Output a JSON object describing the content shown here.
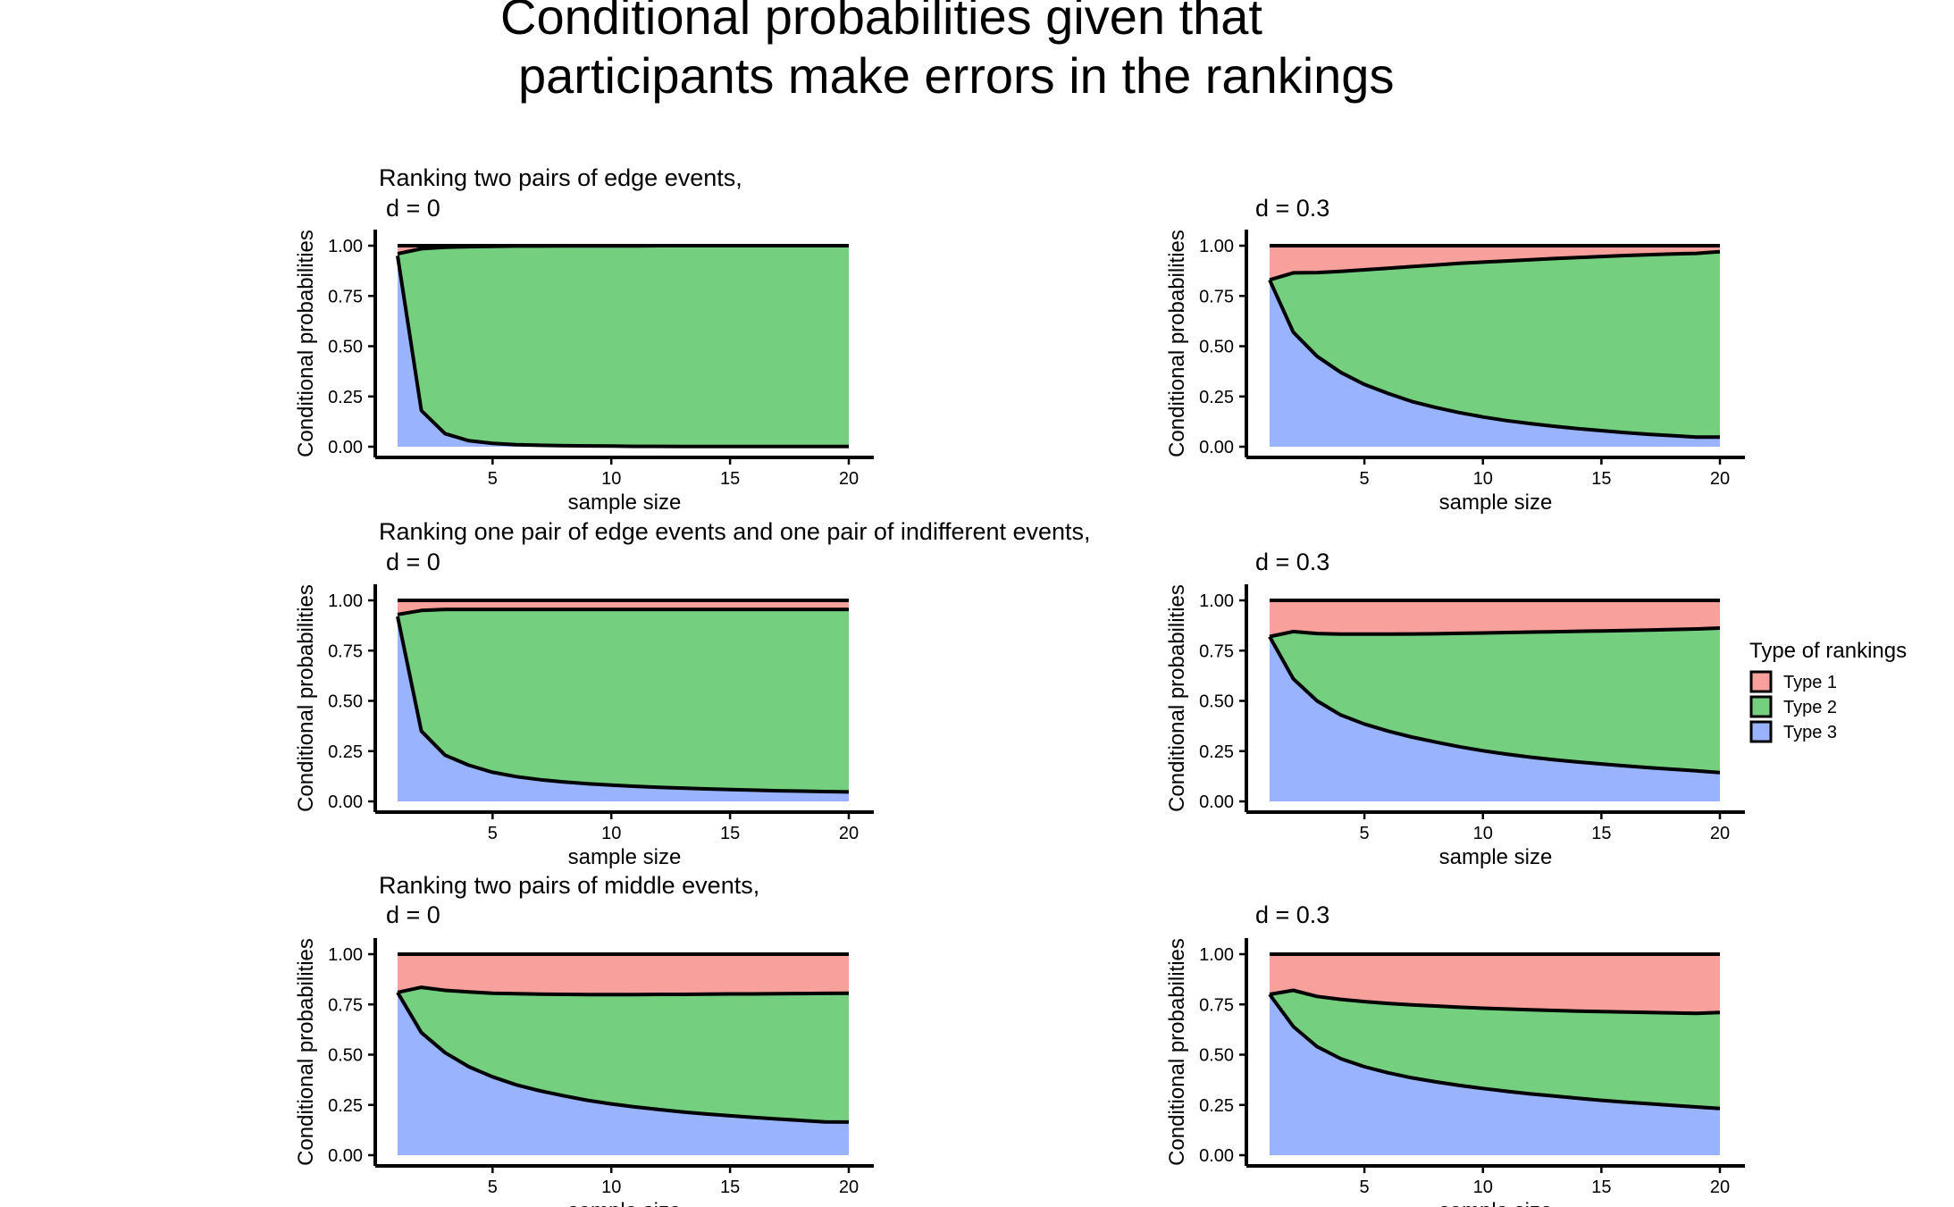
{
  "title_line1": "Conditional probabilities given that",
  "title_line2": "participants make errors in the rankings",
  "colors": {
    "type1": "#F8A09C",
    "type2": "#74D07F",
    "type3": "#99B3FF",
    "line": "#000000"
  },
  "legend": {
    "title": "Type of rankings",
    "items": [
      {
        "label": "Type 1",
        "color": "#F8A09C"
      },
      {
        "label": "Type 2",
        "color": "#74D07F"
      },
      {
        "label": "Type 3",
        "color": "#99B3FF"
      }
    ]
  },
  "chart_data": [
    {
      "type": "area",
      "title": "Ranking two pairs of edge events,",
      "subtitle": "d = 0",
      "xlabel": "sample size",
      "ylabel": "Conditional probabilities",
      "xlim": [
        1,
        20
      ],
      "ylim": [
        0,
        1
      ],
      "xticks": [
        5,
        10,
        15,
        20
      ],
      "yticks": [
        "0.00",
        "0.25",
        "0.50",
        "0.75",
        "1.00"
      ],
      "x": [
        1,
        2,
        3,
        4,
        5,
        6,
        7,
        8,
        9,
        10,
        11,
        12,
        13,
        14,
        15,
        16,
        17,
        18,
        19,
        20
      ],
      "type3_upper": [
        0.95,
        0.18,
        0.065,
        0.03,
        0.017,
        0.01,
        0.007,
        0.005,
        0.004,
        0.003,
        0.002,
        0.002,
        0.001,
        0.001,
        0.001,
        0.001,
        0.001,
        0.001,
        0.001,
        0.001
      ],
      "type2_upper": [
        0.96,
        0.985,
        0.992,
        0.995,
        0.997,
        0.998,
        0.998,
        0.999,
        0.999,
        0.999,
        0.999,
        1,
        1,
        1,
        1,
        1,
        1,
        1,
        1,
        1
      ]
    },
    {
      "type": "area",
      "title": "",
      "subtitle": "d = 0.3",
      "xlabel": "sample size",
      "ylabel": "Conditional probabilities",
      "xlim": [
        1,
        20
      ],
      "ylim": [
        0,
        1
      ],
      "xticks": [
        5,
        10,
        15,
        20
      ],
      "yticks": [
        "0.00",
        "0.25",
        "0.50",
        "0.75",
        "1.00"
      ],
      "x": [
        1,
        2,
        3,
        4,
        5,
        6,
        7,
        8,
        9,
        10,
        11,
        12,
        13,
        14,
        15,
        16,
        17,
        18,
        19,
        20
      ],
      "type3_upper": [
        0.83,
        0.57,
        0.45,
        0.37,
        0.31,
        0.265,
        0.225,
        0.195,
        0.17,
        0.148,
        0.13,
        0.115,
        0.102,
        0.09,
        0.08,
        0.07,
        0.062,
        0.055,
        0.048,
        0.048
      ],
      "type2_upper": [
        0.83,
        0.865,
        0.866,
        0.872,
        0.88,
        0.888,
        0.896,
        0.904,
        0.912,
        0.918,
        0.924,
        0.93,
        0.936,
        0.941,
        0.946,
        0.951,
        0.955,
        0.959,
        0.962,
        0.97
      ]
    },
    {
      "type": "area",
      "title": "Ranking one pair of edge events and one pair of indifferent events,",
      "subtitle": "d = 0",
      "xlabel": "sample size",
      "ylabel": "Conditional probabilities",
      "xlim": [
        1,
        20
      ],
      "ylim": [
        0,
        1
      ],
      "xticks": [
        5,
        10,
        15,
        20
      ],
      "yticks": [
        "0.00",
        "0.25",
        "0.50",
        "0.75",
        "1.00"
      ],
      "x": [
        1,
        2,
        3,
        4,
        5,
        6,
        7,
        8,
        9,
        10,
        11,
        12,
        13,
        14,
        15,
        16,
        17,
        18,
        19,
        20
      ],
      "type3_upper": [
        0.92,
        0.35,
        0.23,
        0.18,
        0.145,
        0.123,
        0.108,
        0.097,
        0.088,
        0.081,
        0.075,
        0.07,
        0.066,
        0.062,
        0.059,
        0.056,
        0.053,
        0.051,
        0.049,
        0.047
      ],
      "type2_upper": [
        0.93,
        0.95,
        0.955,
        0.955,
        0.955,
        0.955,
        0.955,
        0.955,
        0.955,
        0.955,
        0.955,
        0.955,
        0.955,
        0.955,
        0.955,
        0.955,
        0.955,
        0.955,
        0.955,
        0.955
      ]
    },
    {
      "type": "area",
      "title": "",
      "subtitle": "d = 0.3",
      "xlabel": "sample size",
      "ylabel": "Conditional probabilities",
      "xlim": [
        1,
        20
      ],
      "ylim": [
        0,
        1
      ],
      "xticks": [
        5,
        10,
        15,
        20
      ],
      "yticks": [
        "0.00",
        "0.25",
        "0.50",
        "0.75",
        "1.00"
      ],
      "x": [
        1,
        2,
        3,
        4,
        5,
        6,
        7,
        8,
        9,
        10,
        11,
        12,
        13,
        14,
        15,
        16,
        17,
        18,
        19,
        20
      ],
      "type3_upper": [
        0.82,
        0.61,
        0.5,
        0.43,
        0.385,
        0.35,
        0.32,
        0.295,
        0.272,
        0.252,
        0.235,
        0.22,
        0.207,
        0.196,
        0.186,
        0.177,
        0.168,
        0.16,
        0.152,
        0.143
      ],
      "type2_upper": [
        0.82,
        0.845,
        0.835,
        0.832,
        0.832,
        0.832,
        0.833,
        0.834,
        0.836,
        0.838,
        0.84,
        0.842,
        0.844,
        0.846,
        0.848,
        0.85,
        0.852,
        0.855,
        0.858,
        0.862
      ]
    },
    {
      "type": "area",
      "title": "Ranking two pairs of middle events,",
      "subtitle": "d = 0",
      "xlabel": "sample size",
      "ylabel": "Conditional probabilities",
      "xlim": [
        1,
        20
      ],
      "ylim": [
        0,
        1
      ],
      "xticks": [
        5,
        10,
        15,
        20
      ],
      "yticks": [
        "0.00",
        "0.25",
        "0.50",
        "0.75",
        "1.00"
      ],
      "x": [
        1,
        2,
        3,
        4,
        5,
        6,
        7,
        8,
        9,
        10,
        11,
        12,
        13,
        14,
        15,
        16,
        17,
        18,
        19,
        20
      ],
      "type3_upper": [
        0.81,
        0.61,
        0.51,
        0.44,
        0.39,
        0.35,
        0.32,
        0.295,
        0.273,
        0.255,
        0.24,
        0.227,
        0.215,
        0.205,
        0.196,
        0.188,
        0.18,
        0.173,
        0.166,
        0.165
      ],
      "type2_upper": [
        0.81,
        0.835,
        0.82,
        0.812,
        0.806,
        0.803,
        0.801,
        0.8,
        0.799,
        0.799,
        0.799,
        0.8,
        0.8,
        0.801,
        0.802,
        0.802,
        0.803,
        0.804,
        0.805,
        0.806
      ]
    },
    {
      "type": "area",
      "title": "",
      "subtitle": "d = 0.3",
      "xlabel": "sample size",
      "ylabel": "Conditional probabilities",
      "xlim": [
        1,
        20
      ],
      "ylim": [
        0,
        1
      ],
      "xticks": [
        5,
        10,
        15,
        20
      ],
      "yticks": [
        "0.00",
        "0.25",
        "0.50",
        "0.75",
        "1.00"
      ],
      "x": [
        1,
        2,
        3,
        4,
        5,
        6,
        7,
        8,
        9,
        10,
        11,
        12,
        13,
        14,
        15,
        16,
        17,
        18,
        19,
        20
      ],
      "type3_upper": [
        0.8,
        0.64,
        0.54,
        0.48,
        0.44,
        0.41,
        0.385,
        0.365,
        0.347,
        0.332,
        0.318,
        0.305,
        0.294,
        0.283,
        0.273,
        0.264,
        0.256,
        0.248,
        0.24,
        0.232
      ],
      "type2_upper": [
        0.8,
        0.82,
        0.79,
        0.775,
        0.764,
        0.755,
        0.748,
        0.742,
        0.736,
        0.731,
        0.727,
        0.723,
        0.72,
        0.717,
        0.714,
        0.712,
        0.71,
        0.708,
        0.706,
        0.71
      ]
    }
  ]
}
